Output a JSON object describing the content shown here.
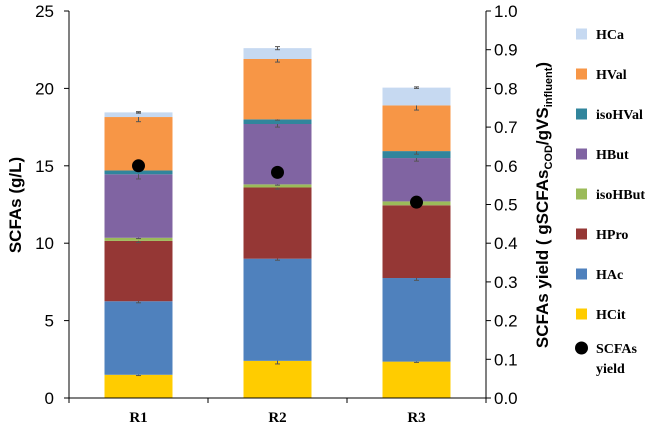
{
  "chart_data": {
    "type": "bar",
    "stacked": true,
    "categories": [
      "R1",
      "R2",
      "R3"
    ],
    "ylabel": "SCFAs  (g/L)",
    "y2label": {
      "base": "SCFAs yield ( gSCFAs",
      "sub1": "COD",
      "mid": "/gVS",
      "sub2": "influent",
      "end": ")"
    },
    "ylim": [
      0,
      25
    ],
    "yticks": [
      0,
      5,
      10,
      15,
      20,
      25
    ],
    "y2lim": [
      0,
      1.0
    ],
    "y2ticks": [
      "0.0",
      "0.1",
      "0.2",
      "0.3",
      "0.4",
      "0.5",
      "0.6",
      "0.7",
      "0.8",
      "0.9",
      "1.0"
    ],
    "grid": false,
    "legend_position": "right",
    "series": [
      {
        "name": "HCit",
        "color": "#FFCC00",
        "values": [
          1.5,
          2.4,
          2.35
        ],
        "errors": [
          0.05,
          0.2,
          0.05
        ]
      },
      {
        "name": "HAc",
        "color": "#4F81BD",
        "values": [
          4.75,
          6.6,
          5.4
        ],
        "errors": [
          0.1,
          0.1,
          0.15
        ]
      },
      {
        "name": "HPro",
        "color": "#953735",
        "values": [
          3.9,
          4.6,
          4.7
        ],
        "errors": [
          0.1,
          0.1,
          0.1
        ]
      },
      {
        "name": "isoHBut",
        "color": "#9BBB59",
        "values": [
          0.2,
          0.2,
          0.25
        ],
        "errors": [
          0.05,
          0.05,
          0.05
        ]
      },
      {
        "name": "HBut",
        "color": "#8064A2",
        "values": [
          4.1,
          3.9,
          2.8
        ],
        "errors": [
          0.3,
          0.2,
          0.2
        ]
      },
      {
        "name": "isoHVal",
        "color": "#31859C",
        "values": [
          0.25,
          0.3,
          0.45
        ],
        "errors": [
          0.05,
          0.05,
          0.2
        ]
      },
      {
        "name": "HVal",
        "color": "#F79646",
        "values": [
          3.45,
          3.9,
          2.95
        ],
        "errors": [
          0.3,
          0.2,
          0.3
        ]
      },
      {
        "name": "HCa",
        "color": "#C6D9F1",
        "values": [
          0.3,
          0.7,
          1.15
        ],
        "errors": [
          0.05,
          0.1,
          0.05
        ]
      }
    ],
    "yield_series": {
      "name": "SCFAs\nyield",
      "legend_line1": "SCFAs",
      "legend_line2": "yield",
      "color": "#000000",
      "axis": "right",
      "values": [
        0.6,
        0.583,
        0.506
      ]
    }
  }
}
